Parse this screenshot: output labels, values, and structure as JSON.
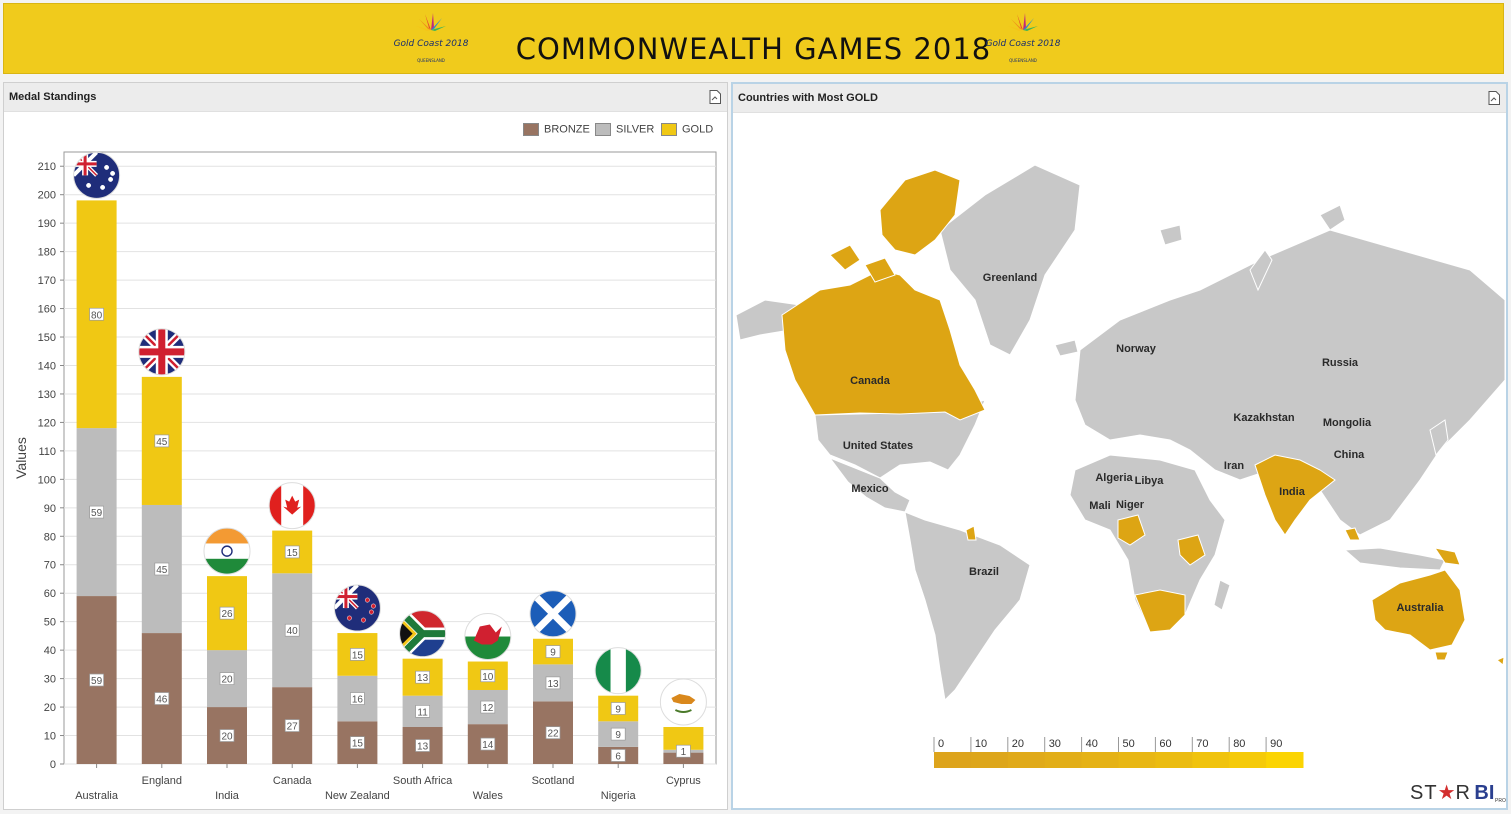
{
  "header": {
    "title": "COMMONWEALTH  GAMES  2018",
    "logo_text": "Gold Coast 2018",
    "logo_sub": "QUEENSLAND"
  },
  "left_panel": {
    "title": "Medal Standings",
    "export_icon": "export-icon"
  },
  "right_panel": {
    "title": "Countries with Most GOLD",
    "export_icon": "export-icon"
  },
  "legend": [
    {
      "label": "BRONZE",
      "color": "#987462"
    },
    {
      "label": "SILVER",
      "color": "#bcbcbc"
    },
    {
      "label": "GOLD",
      "color": "#f0c814"
    }
  ],
  "chart_data": {
    "type": "bar",
    "stacked": true,
    "categories": [
      "Australia",
      "England",
      "India",
      "Canada",
      "New Zealand",
      "South Africa",
      "Wales",
      "Scotland",
      "Nigeria",
      "Cyprus"
    ],
    "series": [
      {
        "name": "BRONZE",
        "color": "#987462",
        "values": [
          59,
          46,
          20,
          27,
          15,
          13,
          14,
          22,
          6,
          4
        ]
      },
      {
        "name": "SILVER",
        "color": "#bcbcbc",
        "values": [
          59,
          45,
          20,
          40,
          16,
          11,
          12,
          13,
          9,
          1
        ]
      },
      {
        "name": "GOLD",
        "color": "#f0c814",
        "values": [
          80,
          45,
          26,
          15,
          15,
          13,
          10,
          9,
          9,
          8
        ]
      }
    ],
    "bar_labels": {
      "BRONZE": [
        "59",
        "46",
        "20",
        "27",
        "15",
        "13",
        "14",
        "22",
        "6",
        ""
      ],
      "SILVER": [
        "59",
        "45",
        "20",
        "40",
        "16",
        "11",
        "12",
        "13",
        "9",
        "1"
      ],
      "GOLD": [
        "80",
        "45",
        "26",
        "15",
        "15",
        "13",
        "10",
        "9",
        "9",
        ""
      ]
    },
    "ylabel": "Values",
    "ylim": [
      0,
      215
    ],
    "yticks": [
      0,
      10,
      20,
      30,
      40,
      50,
      60,
      70,
      80,
      90,
      100,
      110,
      120,
      130,
      140,
      150,
      160,
      170,
      180,
      190,
      200,
      210
    ],
    "grid": true,
    "legend_position": "top-right",
    "flags": [
      "australia-flag",
      "england-flag",
      "india-flag",
      "canada-flag",
      "new-zealand-flag",
      "south-africa-flag",
      "wales-flag",
      "scotland-flag",
      "nigeria-flag",
      "cyprus-flag"
    ]
  },
  "map": {
    "labels": [
      "Greenland",
      "Norway",
      "Russia",
      "Canada",
      "Kazakhstan",
      "Mongolia",
      "United States",
      "China",
      "Iran",
      "Algeria",
      "Libya",
      "India",
      "Mexico",
      "Mali",
      "Niger",
      "Brazil",
      "Australia"
    ],
    "highlight_color": "#dda514",
    "base_color": "#c7c7c7",
    "scale": {
      "ticks": [
        "0",
        "10",
        "20",
        "30",
        "40",
        "50",
        "60",
        "70",
        "80",
        "90"
      ],
      "colors": [
        "#dda41c",
        "#dda61b",
        "#e0aa1a",
        "#e2ae18",
        "#e5b216",
        "#e8b714",
        "#ebbc11",
        "#f0c30d",
        "#f5ca09",
        "#fbd403"
      ]
    }
  },
  "brand": {
    "text_star": "ST",
    "text_r": "R",
    "text_bi": "BI",
    "text_pro": "PRO"
  }
}
